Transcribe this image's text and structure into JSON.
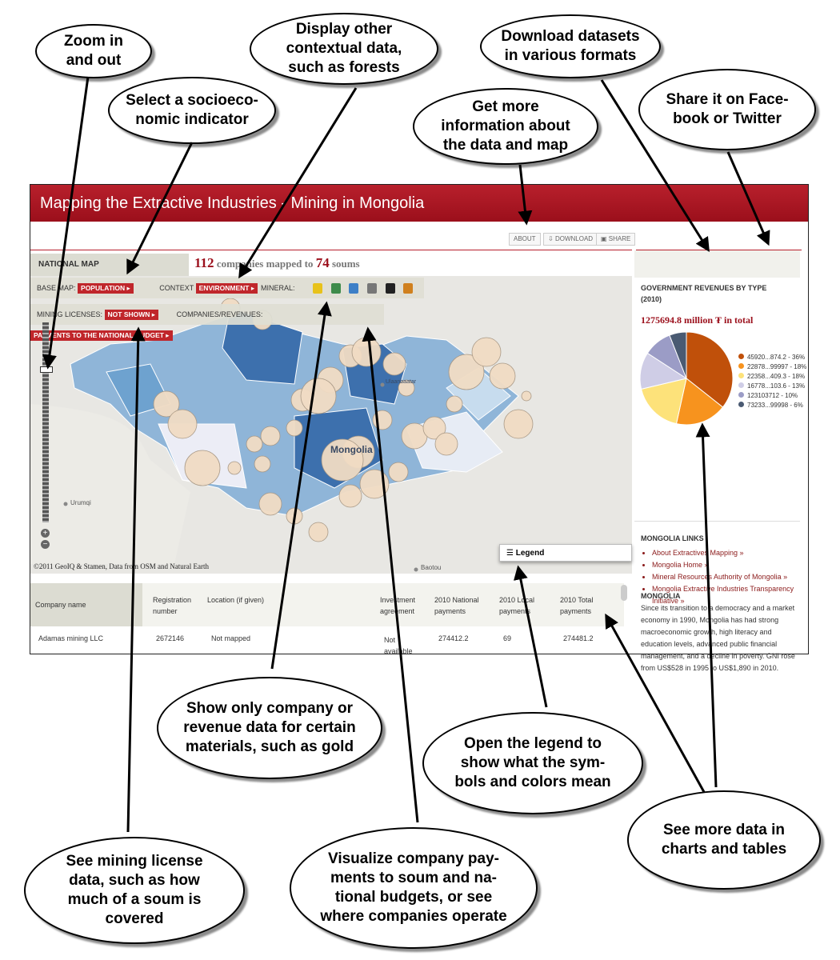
{
  "callouts": {
    "zoom": "Zoom in\nand out",
    "context": "Display other\ncontextual data,\nsuch as forests",
    "download": "Download datasets\nin various formats",
    "indicator": "Select a socioeco-\nnomic indicator",
    "about": "Get more\ninformation about\nthe data and map",
    "share": "Share it on Face-\nbook or Twitter",
    "mineral": "Show only company or\nrevenue data for certain\nmaterials, such as gold",
    "legend": "Open the legend to\nshow what the sym-\nbols and colors mean",
    "charts": "See more data in\ncharts and tables",
    "licenses": "See mining license\ndata, such as how\nmuch of a soum is\ncovered",
    "payments": "Visualize company pay-\nments to soum and na-\ntional budgets, or see\nwhere companies operate"
  },
  "app": {
    "title": "Mapping the Extractive Industries - Mining in Mongolia",
    "buttons": {
      "about": "ABOUT",
      "download": "DOWNLOAD",
      "share": "SHARE"
    },
    "national_map": "NATIONAL MAP",
    "count": {
      "companies": "112",
      "mid": "companies mapped to",
      "soums": "74",
      "end": "soums"
    },
    "controls": {
      "base_map_label": "BASE MAP:",
      "base_map_value": "POPULATION",
      "context_label": "CONTEXT",
      "context_value": "ENVIRONMENT",
      "mineral_label": "MINERAL:",
      "licenses_label": "MINING LICENSES:",
      "licenses_value": "NOT SHOWN",
      "companies_label": "COMPANIES/REVENUES:",
      "companies_value": "PAYMENTS TO THE NATIONAL BUDGET"
    },
    "map_labels": {
      "country": "Mongolia",
      "city1": "Ulaanbaatar",
      "city2": "Urumqi",
      "city3": "Baotou"
    },
    "credits": "©2011 GeoIQ & Stamen, Data from OSM and Natural Earth",
    "legend_button": "Legend",
    "table": {
      "headers": [
        "Company name",
        "Registration\nnumber",
        "Location (if given)",
        "Investment\nagreement",
        "2010 National\npayments",
        "2010 Local\npayments",
        "2010 Total\npayments"
      ],
      "row": [
        "Adamas mining LLC",
        "2672146",
        "Not mapped",
        "Not\navailable",
        "274412.2",
        "69",
        "274481.2"
      ]
    },
    "side": {
      "rev_title": "GOVERNMENT REVENUES BY TYPE",
      "rev_year": "(2010)",
      "total": "1275694.8 million ₮ in total",
      "legend": [
        {
          "label": "45920...874.2 - 36%",
          "color": "#c0500a"
        },
        {
          "label": "22878...99997 - 18%",
          "color": "#f7931e"
        },
        {
          "label": "22358...409.3 - 18%",
          "color": "#fde27a"
        },
        {
          "label": "16778...103.6 - 13%",
          "color": "#cfcde6"
        },
        {
          "label": "123103712 - 10%",
          "color": "#9b9cc6"
        },
        {
          "label": "73233...99998 - 6%",
          "color": "#4a5a72"
        }
      ],
      "pie_values": [
        36,
        18,
        18,
        13,
        10,
        6
      ],
      "links_title": "MONGOLIA LINKS",
      "links": [
        "About Extractives Mapping »",
        "Mongolia Home »",
        "Mineral Resources Authority of Mongolia »",
        "Mongolia Extractive Industries Transparency Initiative »"
      ],
      "about_title": "MONGOLIA",
      "about_text": "Since its transition to a democracy and a market economy in 1990, Mongolia has had strong macroeconomic growth, high literacy and education levels, advanced public financial management, and a decline in poverty. GNI rose from US$528 in 1995 to US$1,890 in 2010."
    }
  }
}
